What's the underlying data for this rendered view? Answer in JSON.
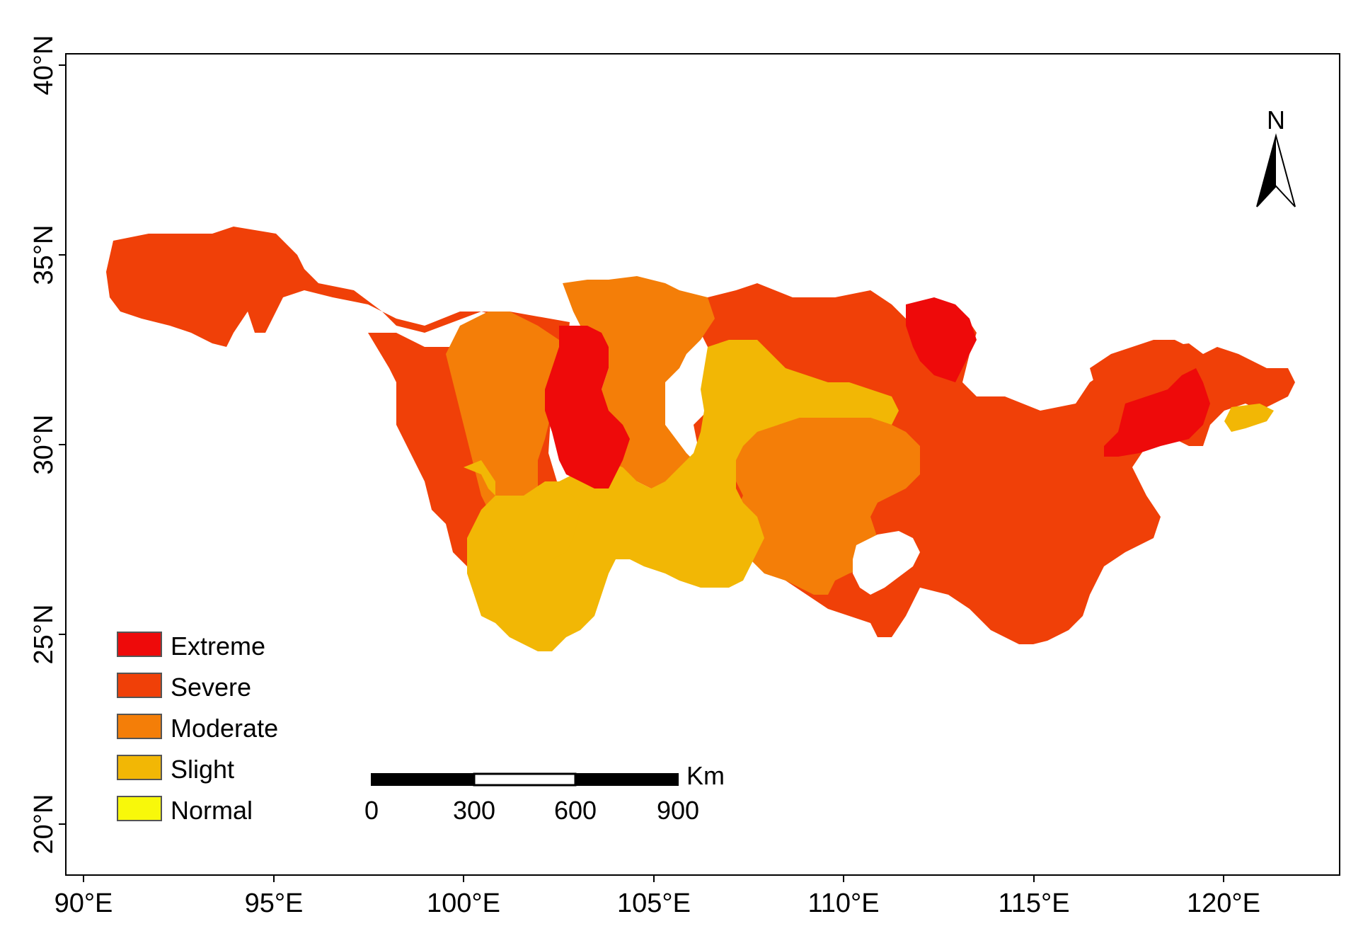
{
  "map": {
    "x_ticks": [
      "90°E",
      "95°E",
      "100°E",
      "105°E",
      "110°E",
      "115°E",
      "120°E"
    ],
    "y_ticks": [
      "20°N",
      "25°N",
      "30°N",
      "35°N",
      "40°N"
    ],
    "legend": [
      {
        "label": "Extreme",
        "color": "#ee0a0a"
      },
      {
        "label": "Severe",
        "color": "#f04008"
      },
      {
        "label": "Moderate",
        "color": "#f47e08"
      },
      {
        "label": "Slight",
        "color": "#f2b705"
      },
      {
        "label": "Normal",
        "color": "#f8f80a"
      }
    ],
    "scale_bar": {
      "unit": "Km",
      "labels": [
        "0",
        "300",
        "600",
        "900"
      ]
    },
    "north_arrow": {
      "label": "N",
      "icon": "north-arrow-icon"
    }
  }
}
